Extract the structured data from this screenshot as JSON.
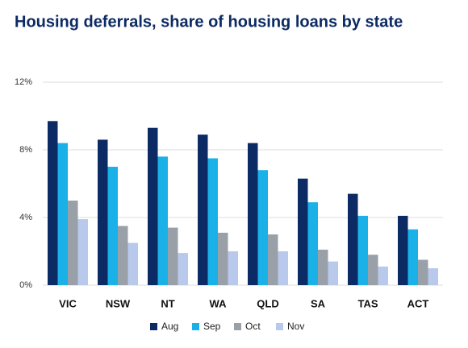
{
  "chart_data": {
    "type": "bar",
    "title": "Housing deferrals, share of housing loans by state",
    "categories": [
      "VIC",
      "NSW",
      "NT",
      "WA",
      "QLD",
      "SA",
      "TAS",
      "ACT"
    ],
    "series": [
      {
        "name": "Aug",
        "color": "#0c2a63",
        "values": [
          9.7,
          8.6,
          9.3,
          8.9,
          8.4,
          6.3,
          5.4,
          4.1
        ]
      },
      {
        "name": "Sep",
        "color": "#1ab0e8",
        "values": [
          8.4,
          7.0,
          7.6,
          7.5,
          6.8,
          4.9,
          4.1,
          3.3
        ]
      },
      {
        "name": "Oct",
        "color": "#9aa0a8",
        "values": [
          5.0,
          3.5,
          3.4,
          3.1,
          3.0,
          2.1,
          1.8,
          1.5
        ]
      },
      {
        "name": "Nov",
        "color": "#b8c9ec",
        "values": [
          3.9,
          2.5,
          1.9,
          2.0,
          2.0,
          1.4,
          1.1,
          1.0
        ]
      }
    ],
    "ylim": [
      0,
      12
    ],
    "yticks": [
      {
        "value": 0,
        "label": "0%"
      },
      {
        "value": 4,
        "label": "4%"
      },
      {
        "value": 8,
        "label": "8%"
      },
      {
        "value": 12,
        "label": "12%"
      }
    ],
    "grid": true,
    "legend": "bottom"
  }
}
